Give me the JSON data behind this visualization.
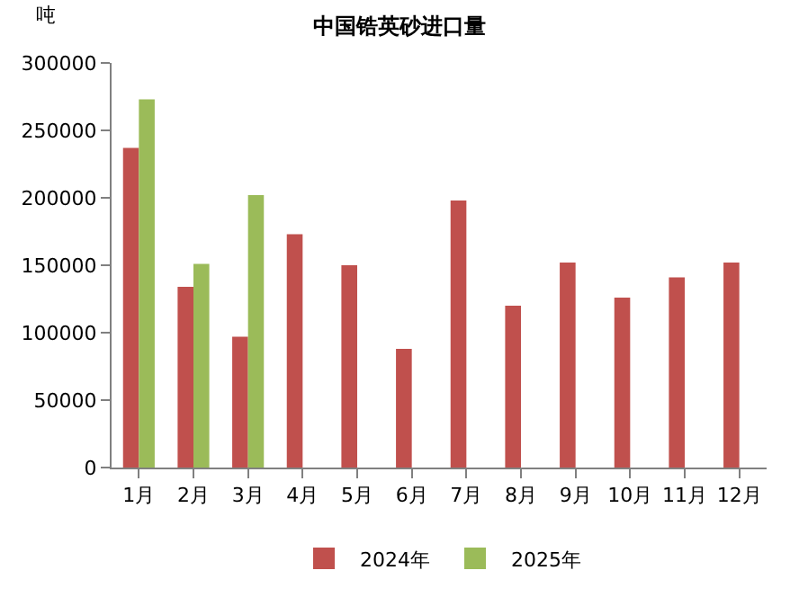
{
  "chart_data": {
    "type": "bar",
    "title": "中国锆英砂进口量",
    "ylabel": "吨",
    "categories": [
      "1月",
      "2月",
      "3月",
      "4月",
      "5月",
      "6月",
      "7月",
      "8月",
      "9月",
      "10月",
      "11月",
      "12月"
    ],
    "series": [
      {
        "name": "2024年",
        "color": "#c0504d",
        "values": [
          237000,
          134000,
          97000,
          173000,
          150000,
          88000,
          198000,
          120000,
          152000,
          126000,
          141000,
          152000
        ]
      },
      {
        "name": "2025年",
        "color": "#9bbb59",
        "values": [
          273000,
          151000,
          202000,
          null,
          null,
          null,
          null,
          null,
          null,
          null,
          null,
          null
        ]
      }
    ],
    "ylim": [
      0,
      300000
    ],
    "yticks": [
      0,
      50000,
      100000,
      150000,
      200000,
      250000,
      300000
    ],
    "legend": "bottom"
  }
}
